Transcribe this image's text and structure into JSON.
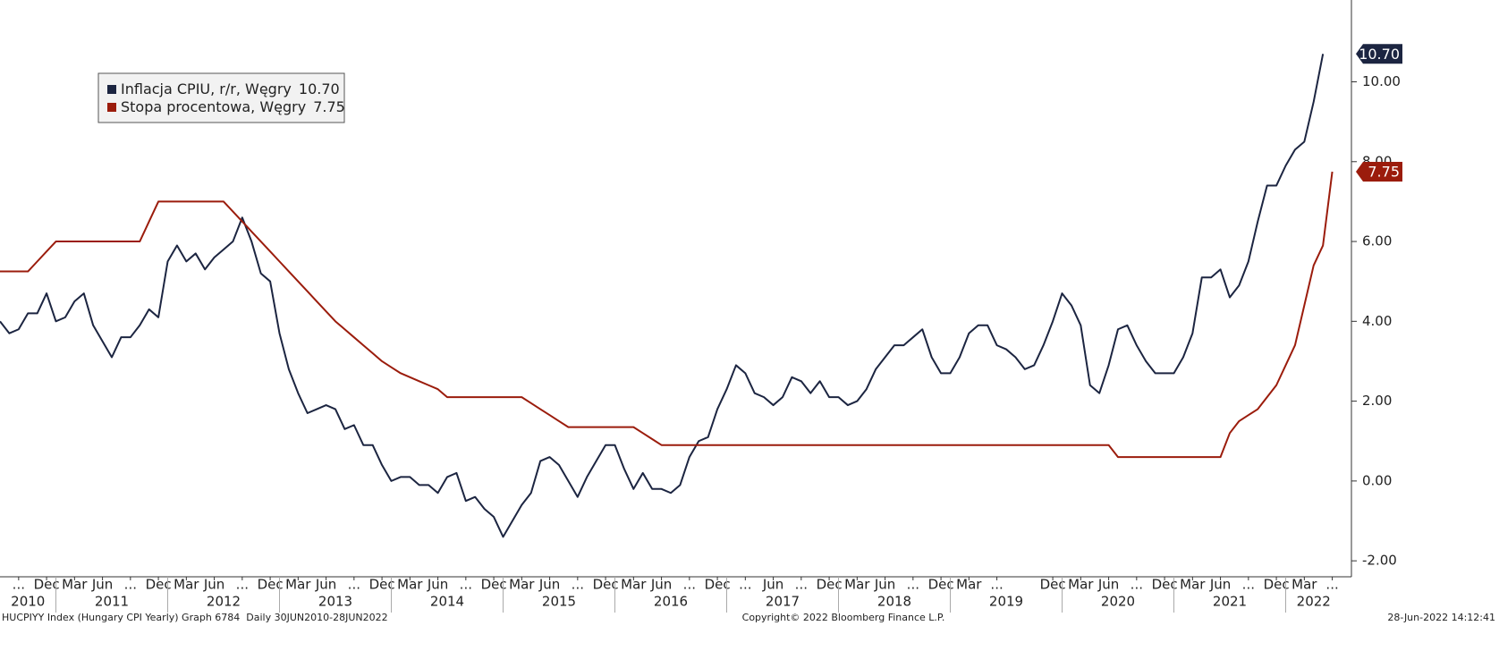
{
  "chart_data": {
    "type": "line",
    "x": [
      "2010-07",
      "2010-08",
      "2010-09",
      "2010-10",
      "2010-11",
      "2010-12",
      "2011-01",
      "2011-02",
      "2011-03",
      "2011-04",
      "2011-05",
      "2011-06",
      "2011-07",
      "2011-08",
      "2011-09",
      "2011-10",
      "2011-11",
      "2011-12",
      "2012-01",
      "2012-02",
      "2012-03",
      "2012-04",
      "2012-05",
      "2012-06",
      "2012-07",
      "2012-08",
      "2012-09",
      "2012-10",
      "2012-11",
      "2012-12",
      "2013-01",
      "2013-02",
      "2013-03",
      "2013-04",
      "2013-05",
      "2013-06",
      "2013-07",
      "2013-08",
      "2013-09",
      "2013-10",
      "2013-11",
      "2013-12",
      "2014-01",
      "2014-02",
      "2014-03",
      "2014-04",
      "2014-05",
      "2014-06",
      "2014-07",
      "2014-08",
      "2014-09",
      "2014-10",
      "2014-11",
      "2014-12",
      "2015-01",
      "2015-02",
      "2015-03",
      "2015-04",
      "2015-05",
      "2015-06",
      "2015-07",
      "2015-08",
      "2015-09",
      "2015-10",
      "2015-11",
      "2015-12",
      "2016-01",
      "2016-02",
      "2016-03",
      "2016-04",
      "2016-05",
      "2016-06",
      "2016-07",
      "2016-08",
      "2016-09",
      "2016-10",
      "2016-11",
      "2016-12",
      "2017-01",
      "2017-02",
      "2017-03",
      "2017-04",
      "2017-05",
      "2017-06",
      "2017-07",
      "2017-08",
      "2017-09",
      "2017-10",
      "2017-11",
      "2017-12",
      "2018-01",
      "2018-02",
      "2018-03",
      "2018-04",
      "2018-05",
      "2018-06",
      "2018-07",
      "2018-08",
      "2018-09",
      "2018-10",
      "2018-11",
      "2018-12",
      "2019-01",
      "2019-02",
      "2019-03",
      "2019-04",
      "2019-05",
      "2019-06",
      "2019-07",
      "2019-08",
      "2019-09",
      "2019-10",
      "2019-11",
      "2019-12",
      "2020-01",
      "2020-02",
      "2020-03",
      "2020-04",
      "2020-05",
      "2020-06",
      "2020-07",
      "2020-08",
      "2020-09",
      "2020-10",
      "2020-11",
      "2020-12",
      "2021-01",
      "2021-02",
      "2021-03",
      "2021-04",
      "2021-05",
      "2021-06",
      "2021-07",
      "2021-08",
      "2021-09",
      "2021-10",
      "2021-11",
      "2021-12",
      "2022-01",
      "2022-02",
      "2022-03",
      "2022-04",
      "2022-05",
      "2022-06"
    ],
    "series": [
      {
        "name": "Inflacja CPIU, r/r, Węgry",
        "end_label": "10.70",
        "color": "#1c2541",
        "values": [
          4.0,
          3.7,
          3.8,
          4.2,
          4.2,
          4.7,
          4.0,
          4.1,
          4.5,
          4.7,
          3.9,
          3.5,
          3.1,
          3.6,
          3.6,
          3.9,
          4.3,
          4.1,
          5.5,
          5.9,
          5.5,
          5.7,
          5.3,
          5.6,
          5.8,
          6.0,
          6.6,
          6.0,
          5.2,
          5.0,
          3.7,
          2.8,
          2.2,
          1.7,
          1.8,
          1.9,
          1.8,
          1.3,
          1.4,
          0.9,
          0.9,
          0.4,
          0.0,
          0.1,
          0.1,
          -0.1,
          -0.1,
          -0.3,
          0.1,
          0.2,
          -0.5,
          -0.4,
          -0.7,
          -0.9,
          -1.4,
          -1.0,
          -0.6,
          -0.3,
          0.5,
          0.6,
          0.4,
          0.0,
          -0.4,
          0.1,
          0.5,
          0.9,
          0.9,
          0.3,
          -0.2,
          0.2,
          -0.2,
          -0.2,
          -0.3,
          -0.1,
          0.6,
          1.0,
          1.1,
          1.8,
          2.3,
          2.9,
          2.7,
          2.2,
          2.1,
          1.9,
          2.1,
          2.6,
          2.5,
          2.2,
          2.5,
          2.1,
          2.1,
          1.9,
          2.0,
          2.3,
          2.8,
          3.1,
          3.4,
          3.4,
          3.6,
          3.8,
          3.1,
          2.7,
          2.7,
          3.1,
          3.7,
          3.9,
          3.9,
          3.4,
          3.3,
          3.1,
          2.8,
          2.9,
          3.4,
          4.0,
          4.7,
          4.4,
          3.9,
          2.4,
          2.2,
          2.9,
          3.8,
          3.9,
          3.4,
          3.0,
          2.7,
          2.7,
          2.7,
          3.1,
          3.7,
          5.1,
          5.1,
          5.3,
          4.6,
          4.9,
          5.5,
          6.5,
          7.4,
          7.4,
          7.9,
          8.3,
          8.5,
          9.5,
          10.7,
          null
        ]
      },
      {
        "name": "Stopa procentowa, Węgry",
        "end_label": "7.75",
        "color": "#9b1c0c",
        "values": [
          5.25,
          5.25,
          5.25,
          5.25,
          5.5,
          5.75,
          6,
          6,
          6,
          6,
          6,
          6,
          6,
          6,
          6,
          6,
          6.5,
          7,
          7,
          7,
          7,
          7,
          7,
          7,
          7,
          6.75,
          6.5,
          6.25,
          6,
          5.75,
          5.5,
          5.25,
          5,
          4.75,
          4.5,
          4.25,
          4,
          3.8,
          3.6,
          3.4,
          3.2,
          3,
          2.85,
          2.7,
          2.6,
          2.5,
          2.4,
          2.3,
          2.1,
          2.1,
          2.1,
          2.1,
          2.1,
          2.1,
          2.1,
          2.1,
          2.1,
          1.95,
          1.8,
          1.65,
          1.5,
          1.35,
          1.35,
          1.35,
          1.35,
          1.35,
          1.35,
          1.35,
          1.35,
          1.2,
          1.05,
          0.9,
          0.9,
          0.9,
          0.9,
          0.9,
          0.9,
          0.9,
          0.9,
          0.9,
          0.9,
          0.9,
          0.9,
          0.9,
          0.9,
          0.9,
          0.9,
          0.9,
          0.9,
          0.9,
          0.9,
          0.9,
          0.9,
          0.9,
          0.9,
          0.9,
          0.9,
          0.9,
          0.9,
          0.9,
          0.9,
          0.9,
          0.9,
          0.9,
          0.9,
          0.9,
          0.9,
          0.9,
          0.9,
          0.9,
          0.9,
          0.9,
          0.9,
          0.9,
          0.9,
          0.9,
          0.9,
          0.9,
          0.9,
          0.9,
          0.6,
          0.6,
          0.6,
          0.6,
          0.6,
          0.6,
          0.6,
          0.6,
          0.6,
          0.6,
          0.6,
          0.6,
          1.2,
          1.5,
          1.65,
          1.8,
          2.1,
          2.4,
          2.9,
          3.4,
          4.4,
          5.4,
          5.9,
          7.75
        ]
      }
    ],
    "xlim": [
      "2010-07",
      "2022-07"
    ],
    "xticks": [
      {
        "value": "2010-09",
        "label": "..."
      },
      {
        "value": "2010-12",
        "label": "Dec"
      },
      {
        "value": "2011-03",
        "label": "Mar"
      },
      {
        "value": "2011-06",
        "label": "Jun"
      },
      {
        "value": "2011-09",
        "label": "..."
      },
      {
        "value": "2011-12",
        "label": "Dec"
      },
      {
        "value": "2012-03",
        "label": "Mar"
      },
      {
        "value": "2012-06",
        "label": "Jun"
      },
      {
        "value": "2012-09",
        "label": "..."
      },
      {
        "value": "2012-12",
        "label": "Dec"
      },
      {
        "value": "2013-03",
        "label": "Mar"
      },
      {
        "value": "2013-06",
        "label": "Jun"
      },
      {
        "value": "2013-09",
        "label": "..."
      },
      {
        "value": "2013-12",
        "label": "Dec"
      },
      {
        "value": "2014-03",
        "label": "Mar"
      },
      {
        "value": "2014-06",
        "label": "Jun"
      },
      {
        "value": "2014-09",
        "label": "..."
      },
      {
        "value": "2014-12",
        "label": "Dec"
      },
      {
        "value": "2015-03",
        "label": "Mar"
      },
      {
        "value": "2015-06",
        "label": "Jun"
      },
      {
        "value": "2015-09",
        "label": "..."
      },
      {
        "value": "2015-12",
        "label": "Dec"
      },
      {
        "value": "2016-03",
        "label": "Mar"
      },
      {
        "value": "2016-06",
        "label": "Jun"
      },
      {
        "value": "2016-09",
        "label": "..."
      },
      {
        "value": "2016-12",
        "label": "Dec"
      },
      {
        "value": "2017-03",
        "label": "..."
      },
      {
        "value": "2017-06",
        "label": "Jun"
      },
      {
        "value": "2017-09",
        "label": "..."
      },
      {
        "value": "2017-12",
        "label": "Dec"
      },
      {
        "value": "2018-03",
        "label": "Mar"
      },
      {
        "value": "2018-06",
        "label": "Jun"
      },
      {
        "value": "2018-09",
        "label": "..."
      },
      {
        "value": "2018-12",
        "label": "Dec"
      },
      {
        "value": "2019-03",
        "label": "Mar"
      },
      {
        "value": "2019-06",
        "label": "..."
      },
      {
        "value": "2019-12",
        "label": "Dec"
      },
      {
        "value": "2020-03",
        "label": "Mar"
      },
      {
        "value": "2020-06",
        "label": "Jun"
      },
      {
        "value": "2020-09",
        "label": "..."
      },
      {
        "value": "2020-12",
        "label": "Dec"
      },
      {
        "value": "2021-03",
        "label": "Mar"
      },
      {
        "value": "2021-06",
        "label": "Jun"
      },
      {
        "value": "2021-09",
        "label": "..."
      },
      {
        "value": "2021-12",
        "label": "Dec"
      },
      {
        "value": "2022-03",
        "label": "Mar"
      },
      {
        "value": "2022-06",
        "label": "..."
      }
    ],
    "year_ticks": [
      2010,
      2011,
      2012,
      2013,
      2014,
      2015,
      2016,
      2017,
      2018,
      2019,
      2020,
      2021,
      2022
    ],
    "ylim": [
      -2.4,
      12.05
    ],
    "yticks": [
      {
        "value": -2,
        "label": "-2.00"
      },
      {
        "value": 0,
        "label": "0.00"
      },
      {
        "value": 2,
        "label": "2.00"
      },
      {
        "value": 4,
        "label": "4.00"
      },
      {
        "value": 6,
        "label": "6.00"
      },
      {
        "value": 8,
        "label": "8.00"
      },
      {
        "value": 10,
        "label": "10.00"
      }
    ],
    "legend": "upper left",
    "footer_left": "HUCPIYY Index (Hungary CPI Yearly) Graph 6784  Daily 30JUN2010-28JUN2022",
    "footer_center": "Copyright© 2022 Bloomberg Finance L.P.",
    "footer_right": "28-Jun-2022 14:12:41"
  }
}
